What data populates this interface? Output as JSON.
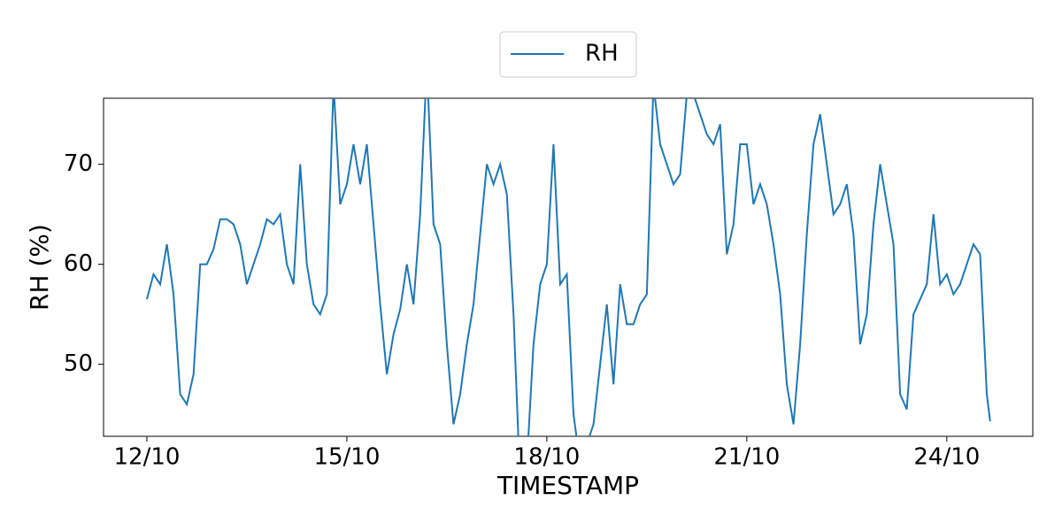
{
  "chart_data": {
    "type": "line",
    "xlabel": "TIMESTAMP",
    "ylabel": "RH (%)",
    "x": [
      12.0,
      12.1,
      12.2,
      12.3,
      12.4,
      12.5,
      12.6,
      12.7,
      12.8,
      12.9,
      13.0,
      13.1,
      13.2,
      13.3,
      13.4,
      13.5,
      13.6,
      13.7,
      13.8,
      13.9,
      14.0,
      14.1,
      14.2,
      14.3,
      14.4,
      14.5,
      14.6,
      14.7,
      14.8,
      14.9,
      15.0,
      15.1,
      15.2,
      15.3,
      15.4,
      15.5,
      15.6,
      15.7,
      15.8,
      15.9,
      16.0,
      16.1,
      16.2,
      16.3,
      16.4,
      16.5,
      16.6,
      16.7,
      16.8,
      16.9,
      17.0,
      17.1,
      17.2,
      17.3,
      17.4,
      17.5,
      17.6,
      17.7,
      17.8,
      17.9,
      18.0,
      18.1,
      18.2,
      18.3,
      18.4,
      18.5,
      18.6,
      18.7,
      18.8,
      18.9,
      19.0,
      19.1,
      19.2,
      19.3,
      19.4,
      19.5,
      19.6,
      19.7,
      19.8,
      19.9,
      20.0,
      20.1,
      20.2,
      20.3,
      20.4,
      20.5,
      20.6,
      20.7,
      20.8,
      20.9,
      21.0,
      21.1,
      21.2,
      21.3,
      21.4,
      21.5,
      21.6,
      21.7,
      21.8,
      21.9,
      22.0,
      22.1,
      22.2,
      22.3,
      22.4,
      22.5,
      22.6,
      22.7,
      22.8,
      22.9,
      23.0,
      23.1,
      23.2,
      23.3,
      23.4,
      23.5,
      23.6,
      23.7,
      23.8,
      23.9,
      24.0,
      24.1,
      24.2,
      24.3,
      24.4,
      24.5,
      24.6,
      24.65
    ],
    "series": [
      {
        "name": "RH",
        "color": "#1f77b4",
        "values": [
          56.5,
          59,
          58,
          62,
          57,
          47,
          46,
          49,
          60,
          60,
          61.5,
          64.5,
          64.5,
          64,
          62,
          58,
          60,
          62,
          64.5,
          64,
          65,
          60,
          58,
          70,
          60,
          56,
          55,
          57,
          78,
          66,
          68,
          72,
          68,
          72,
          64,
          56,
          49,
          53,
          55.5,
          60,
          56,
          65,
          80,
          64,
          62,
          52,
          44,
          47,
          52,
          56,
          63,
          70,
          68,
          70,
          67,
          55,
          38,
          40,
          52,
          58,
          60,
          72,
          58,
          59,
          45,
          40,
          42,
          44,
          50,
          56,
          48,
          58,
          54,
          54,
          56,
          57,
          78,
          72,
          70,
          68,
          69,
          77,
          77,
          75,
          73,
          72,
          74,
          61,
          64,
          72,
          72,
          66,
          68,
          66,
          62,
          57,
          48,
          44,
          52,
          63,
          72,
          75,
          70,
          65,
          66,
          68,
          63,
          52,
          55,
          64,
          70,
          66,
          62,
          47,
          45.5,
          55,
          56.5,
          58,
          65,
          58,
          59,
          57,
          58,
          60,
          62,
          61,
          47,
          44.3
        ]
      }
    ],
    "xlim": [
      11.35,
      25.29
    ],
    "ylim": [
      42.8,
      76.6
    ],
    "xticks": [
      {
        "value": 12,
        "label": "12/10"
      },
      {
        "value": 15,
        "label": "15/10"
      },
      {
        "value": 18,
        "label": "18/10"
      },
      {
        "value": 21,
        "label": "21/10"
      },
      {
        "value": 24,
        "label": "24/10"
      }
    ],
    "yticks": [
      50,
      60,
      70
    ],
    "legend": "top"
  }
}
